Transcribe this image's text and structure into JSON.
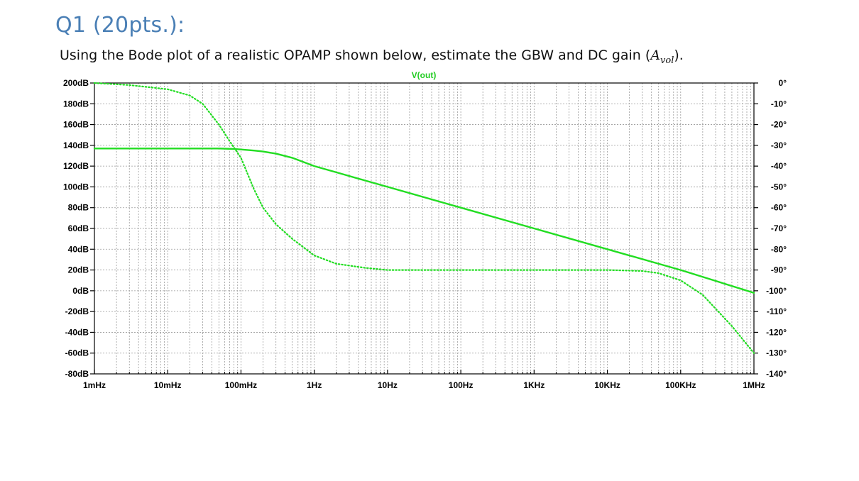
{
  "question": {
    "title": "Q1 (20pts.):",
    "text_before": "Using the Bode plot of a realistic OPAMP shown below, estimate the GBW and DC gain (",
    "symbol": "A",
    "subscript": "vol",
    "text_after": ")."
  },
  "colors": {
    "trace": "#22dd22",
    "grid": "#9a9a9a",
    "axis": "#000000",
    "title": "#4a7fb5"
  },
  "chart_data": {
    "type": "line",
    "title": "V(out)",
    "x_scale": "log",
    "xlim": [
      0.001,
      1000000
    ],
    "x_tick_labels": [
      "1mHz",
      "10mHz",
      "100mHz",
      "1Hz",
      "10Hz",
      "100Hz",
      "1KHz",
      "10KHz",
      "100KHz",
      "1MHz"
    ],
    "x_tick_values": [
      0.001,
      0.01,
      0.1,
      1,
      10,
      100,
      1000,
      10000,
      100000,
      1000000
    ],
    "ylim_left": [
      -80,
      200
    ],
    "y_left_tick_values": [
      200,
      180,
      160,
      140,
      120,
      100,
      80,
      60,
      40,
      20,
      0,
      -20,
      -40,
      -60,
      -80
    ],
    "y_left_tick_labels": [
      "200dB",
      "180dB",
      "160dB",
      "140dB",
      "120dB",
      "100dB",
      "80dB",
      "60dB",
      "40dB",
      "20dB",
      "0dB",
      "-20dB",
      "-40dB",
      "-60dB",
      "-80dB"
    ],
    "ylim_right": [
      -140,
      0
    ],
    "y_right_tick_values": [
      0,
      -10,
      -20,
      -30,
      -40,
      -50,
      -60,
      -70,
      -80,
      -90,
      -100,
      -110,
      -120,
      -130,
      -140
    ],
    "y_right_tick_labels": [
      "0°",
      "-10°",
      "-20°",
      "-30°",
      "-40°",
      "-50°",
      "-60°",
      "-70°",
      "-80°",
      "-90°",
      "-100°",
      "-110°",
      "-120°",
      "-130°",
      "-140°"
    ],
    "grid": true,
    "series": [
      {
        "name": "V(out)",
        "axis": "left",
        "style": "solid",
        "x": [
          0.001,
          0.01,
          0.03,
          0.05,
          0.08,
          0.1,
          0.15,
          0.2,
          0.3,
          0.5,
          1,
          2,
          5,
          10,
          100,
          1000,
          10000,
          100000,
          1000000
        ],
        "y": [
          137,
          137,
          137,
          137,
          136.5,
          136,
          135,
          134,
          132,
          128,
          120,
          114,
          106,
          100,
          80,
          60,
          40,
          20,
          -2
        ]
      },
      {
        "name": "V(out)",
        "axis": "right",
        "style": "dotted",
        "x": [
          0.001,
          0.003,
          0.01,
          0.02,
          0.03,
          0.05,
          0.07,
          0.1,
          0.15,
          0.2,
          0.3,
          0.5,
          1,
          2,
          5,
          10,
          100,
          1000,
          10000,
          30000,
          50000,
          100000,
          200000,
          500000,
          1000000
        ],
        "y": [
          0,
          -1,
          -3,
          -6,
          -10,
          -20,
          -28,
          -36,
          -51,
          -60,
          -68,
          -75,
          -83,
          -87,
          -89,
          -90,
          -90,
          -90,
          -90,
          -90.5,
          -91.5,
          -95,
          -102,
          -117,
          -130
        ]
      }
    ]
  }
}
